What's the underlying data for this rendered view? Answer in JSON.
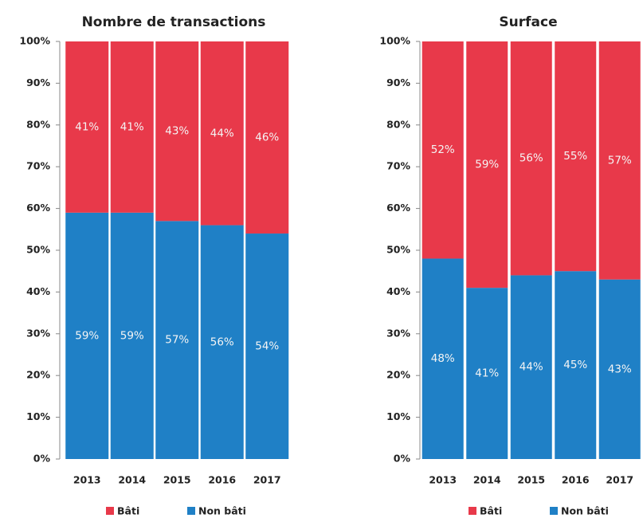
{
  "chart_data": [
    {
      "type": "bar",
      "stacked": true,
      "title": "Nombre de transactions",
      "categories": [
        "2013",
        "2014",
        "2015",
        "2016",
        "2017"
      ],
      "series": [
        {
          "name": "Bâti",
          "color": "#e8394a",
          "values": [
            41,
            41,
            43,
            44,
            46
          ],
          "value_labels": [
            "41%",
            "41%",
            "43%",
            "44%",
            "46%"
          ]
        },
        {
          "name": "Non bâti",
          "color": "#1f80c6",
          "values": [
            59,
            59,
            57,
            56,
            54
          ],
          "value_labels": [
            "59%",
            "59%",
            "57%",
            "56%",
            "54%"
          ]
        }
      ],
      "ylim": [
        0,
        100
      ],
      "yticks": [
        {
          "value": 0,
          "label": "0%"
        },
        {
          "value": 10,
          "label": "10%"
        },
        {
          "value": 20,
          "label": "20%"
        },
        {
          "value": 30,
          "label": "30%"
        },
        {
          "value": 40,
          "label": "40%"
        },
        {
          "value": 50,
          "label": "50%"
        },
        {
          "value": 60,
          "label": "60%"
        },
        {
          "value": 70,
          "label": "70%"
        },
        {
          "value": 80,
          "label": "80%"
        },
        {
          "value": 90,
          "label": "90%"
        },
        {
          "value": 100,
          "label": "100%"
        }
      ]
    },
    {
      "type": "bar",
      "stacked": true,
      "title": "Surface",
      "categories": [
        "2013",
        "2014",
        "2015",
        "2016",
        "2017"
      ],
      "series": [
        {
          "name": "Bâti",
          "color": "#e8394a",
          "values": [
            52,
            59,
            56,
            55,
            57
          ],
          "value_labels": [
            "52%",
            "59%",
            "56%",
            "55%",
            "57%"
          ]
        },
        {
          "name": "Non bâti",
          "color": "#1f80c6",
          "values": [
            48,
            41,
            44,
            45,
            43
          ],
          "value_labels": [
            "48%",
            "41%",
            "44%",
            "45%",
            "43%"
          ]
        }
      ],
      "ylim": [
        0,
        100
      ],
      "yticks": [
        {
          "value": 0,
          "label": "0%"
        },
        {
          "value": 10,
          "label": "10%"
        },
        {
          "value": 20,
          "label": "20%"
        },
        {
          "value": 30,
          "label": "30%"
        },
        {
          "value": 40,
          "label": "40%"
        },
        {
          "value": 50,
          "label": "50%"
        },
        {
          "value": 60,
          "label": "60%"
        },
        {
          "value": 70,
          "label": "70%"
        },
        {
          "value": 80,
          "label": "80%"
        },
        {
          "value": 90,
          "label": "90%"
        },
        {
          "value": 100,
          "label": "100%"
        }
      ]
    }
  ]
}
